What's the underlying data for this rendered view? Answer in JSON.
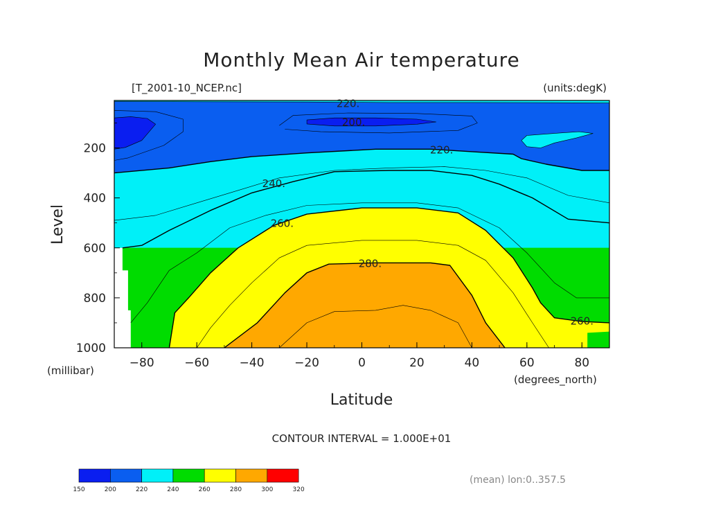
{
  "chart_data": {
    "type": "contour",
    "title": "Monthly Mean Air temperature",
    "file_label": "[T_2001-10_NCEP.nc]",
    "units_label": "(units:degK)",
    "xlabel": "Latitude",
    "ylabel": "Level",
    "x_units": "(degrees_north)",
    "y_units": "(millibar)",
    "x_ticks": [
      -80,
      -60,
      -40,
      -20,
      0,
      20,
      40,
      60,
      80
    ],
    "y_ticks": [
      200,
      400,
      600,
      800,
      1000
    ],
    "x_tick_labels": [
      "−80",
      "−60",
      "−40",
      "−20",
      "0",
      "20",
      "40",
      "60",
      "80"
    ],
    "y_tick_labels": [
      "200",
      "400",
      "600",
      "800",
      "1000"
    ],
    "xlim": [
      -90,
      90
    ],
    "ylim": [
      10,
      1000
    ],
    "y_inverted": true,
    "contour_labels": [
      {
        "text": "220.",
        "lat": -5,
        "lev": 20
      },
      {
        "text": "200.",
        "lat": -3,
        "lev": 95
      },
      {
        "text": "220.",
        "lat": 29,
        "lev": 205
      },
      {
        "text": "240.",
        "lat": -32,
        "lev": 340
      },
      {
        "text": "260.",
        "lat": -29,
        "lev": 500
      },
      {
        "text": "280.",
        "lat": 3,
        "lev": 660
      },
      {
        "text": "260.",
        "lat": 80,
        "lev": 890
      }
    ],
    "contour_interval_text": "CONTOUR INTERVAL = 1.000E+01",
    "stamp_text": "(mean) lon:0..357.5",
    "colorbar": {
      "ticks": [
        "150",
        "200",
        "220",
        "240",
        "260",
        "280",
        "300",
        "320"
      ],
      "colors": [
        "#0a1ef0",
        "#0a5ef0",
        "#00f0f8",
        "#00dc00",
        "#ffff00",
        "#ffa800",
        "#ff0000"
      ]
    },
    "bands": [
      {
        "level": "200-220",
        "color": "#0a5ef0",
        "points": [
          [
            -90,
            10
          ],
          [
            90,
            10
          ],
          [
            90,
            290
          ],
          [
            80,
            290
          ],
          [
            67,
            265
          ],
          [
            58,
            243
          ],
          [
            55,
            225
          ],
          [
            40,
            215
          ],
          [
            25,
            205
          ],
          [
            5,
            205
          ],
          [
            -20,
            220
          ],
          [
            -40,
            235
          ],
          [
            -55,
            255
          ],
          [
            -70,
            280
          ],
          [
            -90,
            300
          ]
        ]
      },
      {
        "level": "220-240",
        "color": "#00f0f8",
        "points": [
          [
            -90,
            300
          ],
          [
            -70,
            280
          ],
          [
            -55,
            255
          ],
          [
            -40,
            235
          ],
          [
            -20,
            220
          ],
          [
            5,
            205
          ],
          [
            25,
            205
          ],
          [
            40,
            215
          ],
          [
            55,
            225
          ],
          [
            58,
            243
          ],
          [
            67,
            265
          ],
          [
            80,
            290
          ],
          [
            90,
            290
          ],
          [
            90,
            600
          ],
          [
            -90,
            600
          ]
        ]
      },
      {
        "level": "240-260",
        "color": "#00dc00",
        "points": [
          [
            -90,
            600
          ],
          [
            90,
            600
          ],
          [
            90,
            1000
          ],
          [
            -90,
            1000
          ]
        ]
      },
      {
        "level": "260-280",
        "color": "#ffff00",
        "points": [
          [
            -70,
            1000
          ],
          [
            -68,
            860
          ],
          [
            -63,
            800
          ],
          [
            -55,
            700
          ],
          [
            -45,
            600
          ],
          [
            -32,
            510
          ],
          [
            -20,
            465
          ],
          [
            0,
            440
          ],
          [
            20,
            440
          ],
          [
            35,
            460
          ],
          [
            45,
            530
          ],
          [
            55,
            640
          ],
          [
            62,
            760
          ],
          [
            65,
            820
          ],
          [
            70,
            880
          ],
          [
            80,
            895
          ],
          [
            90,
            900
          ],
          [
            90,
            1000
          ]
        ]
      },
      {
        "level": "280-290",
        "color": "#ffa800",
        "points": [
          [
            -50,
            1000
          ],
          [
            -38,
            900
          ],
          [
            -28,
            780
          ],
          [
            -20,
            700
          ],
          [
            -12,
            665
          ],
          [
            5,
            660
          ],
          [
            25,
            660
          ],
          [
            32,
            670
          ],
          [
            40,
            790
          ],
          [
            45,
            900
          ],
          [
            52,
            1000
          ]
        ]
      }
    ],
    "bands_top": [
      {
        "level": "<200",
        "color": "#0a1ef0",
        "points": [
          [
            -90,
            80
          ],
          [
            -84,
            75
          ],
          [
            -78,
            82
          ],
          [
            -75,
            105
          ],
          [
            -80,
            170
          ],
          [
            -86,
            198
          ],
          [
            -90,
            205
          ]
        ]
      },
      {
        "level": "<200",
        "color": "#0a1ef0",
        "points": [
          [
            -20,
            88
          ],
          [
            -10,
            80
          ],
          [
            5,
            80
          ],
          [
            20,
            85
          ],
          [
            27,
            96
          ],
          [
            20,
            105
          ],
          [
            5,
            112
          ],
          [
            -10,
            112
          ],
          [
            -20,
            104
          ]
        ]
      },
      {
        "level": "220-240",
        "color": "#00f0f8",
        "points": [
          [
            -90,
            10
          ],
          [
            90,
            10
          ],
          [
            90,
            20
          ],
          [
            70,
            19
          ],
          [
            40,
            18
          ],
          [
            10,
            18
          ],
          [
            -20,
            16
          ],
          [
            -60,
            15
          ],
          [
            -90,
            14
          ]
        ]
      },
      {
        "level": "220-240",
        "color": "#00f0f8",
        "points": [
          [
            60,
            150
          ],
          [
            66,
            145
          ],
          [
            72,
            140
          ],
          [
            79,
            135
          ],
          [
            84,
            142
          ],
          [
            78,
            160
          ],
          [
            70,
            180
          ],
          [
            65,
            200
          ],
          [
            60,
            195
          ],
          [
            58,
            170
          ]
        ]
      }
    ],
    "white_mask": {
      "points": [
        [
          -90,
          600
        ],
        [
          -87,
          600
        ],
        [
          -87,
          690
        ],
        [
          -85,
          690
        ],
        [
          -85,
          850
        ],
        [
          -84,
          850
        ],
        [
          -84,
          1000
        ],
        [
          -90,
          1000
        ]
      ]
    },
    "green_patch": {
      "points": [
        [
          82,
          940
        ],
        [
          90,
          935
        ],
        [
          90,
          1000
        ],
        [
          82,
          1000
        ]
      ]
    },
    "lines": [
      {
        "kind": "bold",
        "points": [
          [
            -90,
            300
          ],
          [
            -70,
            280
          ],
          [
            -55,
            255
          ],
          [
            -40,
            235
          ],
          [
            -20,
            220
          ],
          [
            5,
            205
          ],
          [
            25,
            205
          ],
          [
            40,
            215
          ],
          [
            55,
            225
          ],
          [
            58,
            243
          ],
          [
            67,
            265
          ],
          [
            80,
            290
          ],
          [
            90,
            290
          ]
        ]
      },
      {
        "kind": "thin",
        "points": [
          [
            -90,
            490
          ],
          [
            -75,
            470
          ],
          [
            -60,
            420
          ],
          [
            -45,
            370
          ],
          [
            -30,
            320
          ],
          [
            -10,
            290
          ],
          [
            10,
            280
          ],
          [
            30,
            275
          ],
          [
            45,
            290
          ],
          [
            60,
            320
          ],
          [
            75,
            390
          ],
          [
            90,
            420
          ]
        ]
      },
      {
        "kind": "bold",
        "points": [
          [
            -87,
            600
          ],
          [
            -80,
            590
          ],
          [
            -70,
            530
          ],
          [
            -55,
            450
          ],
          [
            -40,
            380
          ],
          [
            -25,
            335
          ],
          [
            -10,
            295
          ],
          [
            10,
            290
          ],
          [
            25,
            290
          ],
          [
            40,
            310
          ],
          [
            50,
            345
          ],
          [
            62,
            400
          ],
          [
            75,
            485
          ],
          [
            90,
            500
          ]
        ]
      },
      {
        "kind": "thin",
        "points": [
          [
            -84,
            900
          ],
          [
            -78,
            820
          ],
          [
            -70,
            690
          ],
          [
            -60,
            620
          ],
          [
            -48,
            520
          ],
          [
            -35,
            470
          ],
          [
            -20,
            430
          ],
          [
            0,
            420
          ],
          [
            20,
            420
          ],
          [
            35,
            440
          ],
          [
            50,
            520
          ],
          [
            60,
            620
          ],
          [
            70,
            740
          ],
          [
            78,
            800
          ],
          [
            90,
            800
          ]
        ]
      },
      {
        "kind": "bold",
        "points": [
          [
            -70,
            1000
          ],
          [
            -68,
            860
          ],
          [
            -63,
            800
          ],
          [
            -55,
            700
          ],
          [
            -45,
            600
          ],
          [
            -32,
            510
          ],
          [
            -20,
            465
          ],
          [
            0,
            440
          ],
          [
            20,
            440
          ],
          [
            35,
            460
          ],
          [
            45,
            530
          ],
          [
            55,
            640
          ],
          [
            62,
            760
          ],
          [
            65,
            820
          ],
          [
            70,
            880
          ],
          [
            80,
            895
          ],
          [
            90,
            900
          ]
        ]
      },
      {
        "kind": "thin",
        "points": [
          [
            -60,
            1000
          ],
          [
            -55,
            920
          ],
          [
            -48,
            830
          ],
          [
            -40,
            740
          ],
          [
            -30,
            640
          ],
          [
            -20,
            590
          ],
          [
            0,
            570
          ],
          [
            20,
            570
          ],
          [
            35,
            590
          ],
          [
            45,
            650
          ],
          [
            55,
            780
          ],
          [
            62,
            900
          ],
          [
            68,
            1000
          ]
        ]
      },
      {
        "kind": "bold",
        "points": [
          [
            -50,
            1000
          ],
          [
            -38,
            900
          ],
          [
            -28,
            780
          ],
          [
            -20,
            700
          ],
          [
            -12,
            665
          ],
          [
            5,
            660
          ],
          [
            25,
            660
          ],
          [
            32,
            670
          ],
          [
            40,
            790
          ],
          [
            45,
            900
          ],
          [
            52,
            1000
          ]
        ]
      },
      {
        "kind": "thin",
        "points": [
          [
            -30,
            1000
          ],
          [
            -20,
            900
          ],
          [
            -10,
            855
          ],
          [
            5,
            850
          ],
          [
            15,
            830
          ],
          [
            25,
            850
          ],
          [
            35,
            900
          ],
          [
            40,
            1000
          ]
        ]
      },
      {
        "kind": "thin",
        "points": [
          [
            -20,
            88
          ],
          [
            -10,
            80
          ],
          [
            5,
            80
          ],
          [
            20,
            85
          ],
          [
            27,
            96
          ],
          [
            20,
            105
          ],
          [
            5,
            112
          ],
          [
            -10,
            112
          ],
          [
            -20,
            104
          ],
          [
            -20,
            88
          ]
        ]
      },
      {
        "kind": "thin",
        "points": [
          [
            -30,
            110
          ],
          [
            -25,
            70
          ],
          [
            -5,
            60
          ],
          [
            20,
            62
          ],
          [
            40,
            72
          ],
          [
            42,
            100
          ],
          [
            35,
            130
          ],
          [
            10,
            140
          ],
          [
            -15,
            135
          ],
          [
            -28,
            125
          ]
        ]
      },
      {
        "kind": "thin",
        "points": [
          [
            -90,
            80
          ],
          [
            -84,
            75
          ],
          [
            -78,
            82
          ],
          [
            -75,
            105
          ],
          [
            -80,
            170
          ],
          [
            -86,
            198
          ],
          [
            -90,
            205
          ]
        ]
      },
      {
        "kind": "thin",
        "points": [
          [
            -90,
            50
          ],
          [
            -75,
            55
          ],
          [
            -65,
            85
          ],
          [
            -65,
            135
          ],
          [
            -72,
            190
          ],
          [
            -85,
            240
          ],
          [
            -90,
            250
          ]
        ]
      },
      {
        "kind": "thin",
        "points": [
          [
            60,
            150
          ],
          [
            66,
            145
          ],
          [
            72,
            140
          ],
          [
            79,
            135
          ],
          [
            84,
            142
          ],
          [
            78,
            160
          ],
          [
            70,
            180
          ],
          [
            65,
            200
          ],
          [
            60,
            195
          ],
          [
            58,
            170
          ],
          [
            60,
            150
          ]
        ]
      },
      {
        "kind": "thin",
        "points": [
          [
            -90,
            14
          ],
          [
            -60,
            15
          ],
          [
            -20,
            16
          ],
          [
            10,
            18
          ],
          [
            40,
            18
          ],
          [
            70,
            19
          ],
          [
            90,
            20
          ]
        ]
      }
    ]
  }
}
